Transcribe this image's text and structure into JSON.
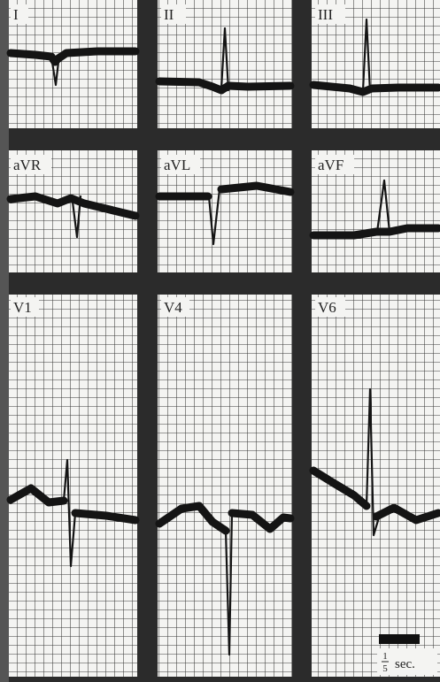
{
  "leads": [
    {
      "label": "I"
    },
    {
      "label": "II"
    },
    {
      "label": "III"
    },
    {
      "label": "aVR"
    },
    {
      "label": "aVL"
    },
    {
      "label": "aVF"
    },
    {
      "label": "V1"
    },
    {
      "label": "V4"
    },
    {
      "label": "V6"
    }
  ],
  "scale": {
    "numerator": "1",
    "denominator": "5",
    "unit": "sec."
  }
}
